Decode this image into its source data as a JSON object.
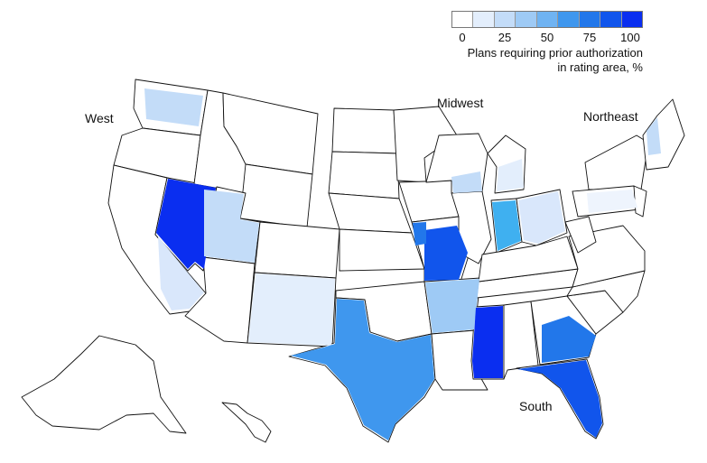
{
  "legend": {
    "title_line1": "Plans requiring prior authorization",
    "title_line2": "in rating area, %",
    "ticks": [
      "0",
      "25",
      "50",
      "75",
      "100"
    ],
    "colors": [
      "#ffffff",
      "#e3eefc",
      "#c3dcf8",
      "#9ecaf5",
      "#6fb3f2",
      "#3f97ee",
      "#2277ea",
      "#1155ec",
      "#0a2ef0"
    ]
  },
  "regions": {
    "west": "West",
    "midwest": "Midwest",
    "northeast": "Northeast",
    "south": "South"
  },
  "states": [
    {
      "name": "Washington",
      "level": 0.15
    },
    {
      "name": "Nevada",
      "level": 1.0
    },
    {
      "name": "California",
      "level": 0.05
    },
    {
      "name": "Utah",
      "level": 0.15
    },
    {
      "name": "New Mexico",
      "level": 0.08
    },
    {
      "name": "Texas",
      "level": 0.6
    },
    {
      "name": "Arkansas",
      "level": 0.25
    },
    {
      "name": "Missouri",
      "level": 0.85
    },
    {
      "name": "Indiana",
      "level": 0.45
    },
    {
      "name": "Ohio",
      "level": 0.15
    },
    {
      "name": "Wisconsin",
      "level": 0.1
    },
    {
      "name": "Michigan",
      "level": 0.1
    },
    {
      "name": "Mississippi",
      "level": 1.0
    },
    {
      "name": "Florida",
      "level": 0.95
    },
    {
      "name": "Georgia",
      "level": 0.6
    },
    {
      "name": "Pennsylvania",
      "level": 0.05
    },
    {
      "name": "New Hampshire",
      "level": 0.1
    }
  ]
}
